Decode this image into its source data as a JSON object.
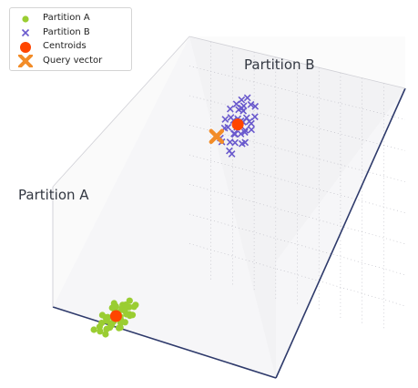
{
  "chart_data": {
    "type": "scatter",
    "dimensions": 3,
    "title": "",
    "grid": true,
    "legend_position": "top-left",
    "colors": {
      "partition_a": "#9ACD32",
      "partition_b": "#6A5ACD",
      "centroid": "#FF4500",
      "query": "#F28C28"
    },
    "labels": {
      "partition_a": "Partition A",
      "partition_b": "Partition B"
    },
    "legend": [
      {
        "label": "Partition A",
        "marker": "circle",
        "color": "#9ACD32"
      },
      {
        "label": "Partition B",
        "marker": "x",
        "color": "#6A5ACD"
      },
      {
        "label": "Centroids",
        "marker": "circle-large",
        "color": "#FF4500"
      },
      {
        "label": "Query vector",
        "marker": "x-thick",
        "color": "#F28C28"
      }
    ],
    "series": [
      {
        "name": "Partition A",
        "marker": "circle",
        "points": [
          [
            2.1,
            2.4,
            0.1
          ],
          [
            2.6,
            2.8,
            0.2
          ],
          [
            1.9,
            3.1,
            0.4
          ],
          [
            2.4,
            1.8,
            0.3
          ],
          [
            3.0,
            2.2,
            0.1
          ],
          [
            1.6,
            2.6,
            0.5
          ],
          [
            2.8,
            3.3,
            0.2
          ],
          [
            2.2,
            2.0,
            0.6
          ],
          [
            3.2,
            2.9,
            0.3
          ],
          [
            1.8,
            1.9,
            0.2
          ],
          [
            2.5,
            3.6,
            0.4
          ],
          [
            2.9,
            1.7,
            0.5
          ],
          [
            1.4,
            3.0,
            0.3
          ],
          [
            3.4,
            2.4,
            0.6
          ],
          [
            2.0,
            3.4,
            0.1
          ],
          [
            2.7,
            2.5,
            0.7
          ],
          [
            1.7,
            2.2,
            0.8
          ],
          [
            3.1,
            3.5,
            0.5
          ],
          [
            2.3,
            2.7,
            0.9
          ],
          [
            2.6,
            1.5,
            0.2
          ],
          [
            1.5,
            1.7,
            0.4
          ],
          [
            3.3,
            2.0,
            0.2
          ],
          [
            2.0,
            2.9,
            0.7
          ],
          [
            2.8,
            2.1,
            0.8
          ],
          [
            1.9,
            3.7,
            0.5
          ],
          [
            3.6,
            2.7,
            0.4
          ],
          [
            2.4,
            3.1,
            0.6
          ],
          [
            1.3,
            2.4,
            0.2
          ],
          [
            3.0,
            3.1,
            0.9
          ],
          [
            2.2,
            1.6,
            0.7
          ],
          [
            2.7,
            3.8,
            0.3
          ],
          [
            1.6,
            3.3,
            0.8
          ],
          [
            3.5,
            1.8,
            0.5
          ],
          [
            2.5,
            2.3,
            0.4
          ],
          [
            2.1,
            2.6,
            0.9
          ],
          [
            2.9,
            2.8,
            0.6
          ],
          [
            1.8,
            2.8,
            0.1
          ],
          [
            2.4,
            1.9,
            0.8
          ],
          [
            3.2,
            2.5,
            0.2
          ],
          [
            2.6,
            3.2,
            0.7
          ]
        ]
      },
      {
        "name": "Partition B",
        "marker": "x",
        "points": [
          [
            7.1,
            7.5,
            6.0
          ],
          [
            7.6,
            7.2,
            6.4
          ],
          [
            6.8,
            7.9,
            5.8
          ],
          [
            8.0,
            7.6,
            6.6
          ],
          [
            7.3,
            6.9,
            5.5
          ],
          [
            7.9,
            8.1,
            6.1
          ],
          [
            6.6,
            7.3,
            6.8
          ],
          [
            7.4,
            8.0,
            7.0
          ],
          [
            8.2,
            7.0,
            5.7
          ],
          [
            7.0,
            7.1,
            6.5
          ],
          [
            7.7,
            7.8,
            5.4
          ],
          [
            6.9,
            8.3,
            6.2
          ],
          [
            8.3,
            8.0,
            6.9
          ],
          [
            7.2,
            7.6,
            7.3
          ],
          [
            7.8,
            6.8,
            6.3
          ],
          [
            6.7,
            7.6,
            5.6
          ],
          [
            7.5,
            7.4,
            6.7
          ],
          [
            8.1,
            7.9,
            5.9
          ],
          [
            7.0,
            8.4,
            6.6
          ],
          [
            7.6,
            6.7,
            7.1
          ],
          [
            6.5,
            7.0,
            6.1
          ],
          [
            7.3,
            8.2,
            5.7
          ],
          [
            8.4,
            7.4,
            6.5
          ],
          [
            7.9,
            7.3,
            7.2
          ],
          [
            6.8,
            6.8,
            6.0
          ],
          [
            7.4,
            7.0,
            5.3
          ],
          [
            8.0,
            8.3,
            6.3
          ],
          [
            7.1,
            7.9,
            6.9
          ],
          [
            7.7,
            7.5,
            7.5
          ],
          [
            6.6,
            8.0,
            6.4
          ],
          [
            7.5,
            8.5,
            6.8
          ],
          [
            8.2,
            6.9,
            6.2
          ],
          [
            7.2,
            6.6,
            6.7
          ],
          [
            6.9,
            7.4,
            7.2
          ],
          [
            7.8,
            7.7,
            6.0
          ],
          [
            7.0,
            7.7,
            5.5
          ],
          [
            7.6,
            8.1,
            7.3
          ],
          [
            8.1,
            7.2,
            6.6
          ]
        ]
      },
      {
        "name": "Centroids",
        "marker": "circle-large",
        "points": [
          [
            2.4,
            2.6,
            0.5
          ],
          [
            7.4,
            7.5,
            6.4
          ]
        ]
      },
      {
        "name": "Query vector",
        "marker": "x-thick",
        "points": [
          [
            6.2,
            7.0,
            6.2
          ]
        ]
      }
    ]
  }
}
